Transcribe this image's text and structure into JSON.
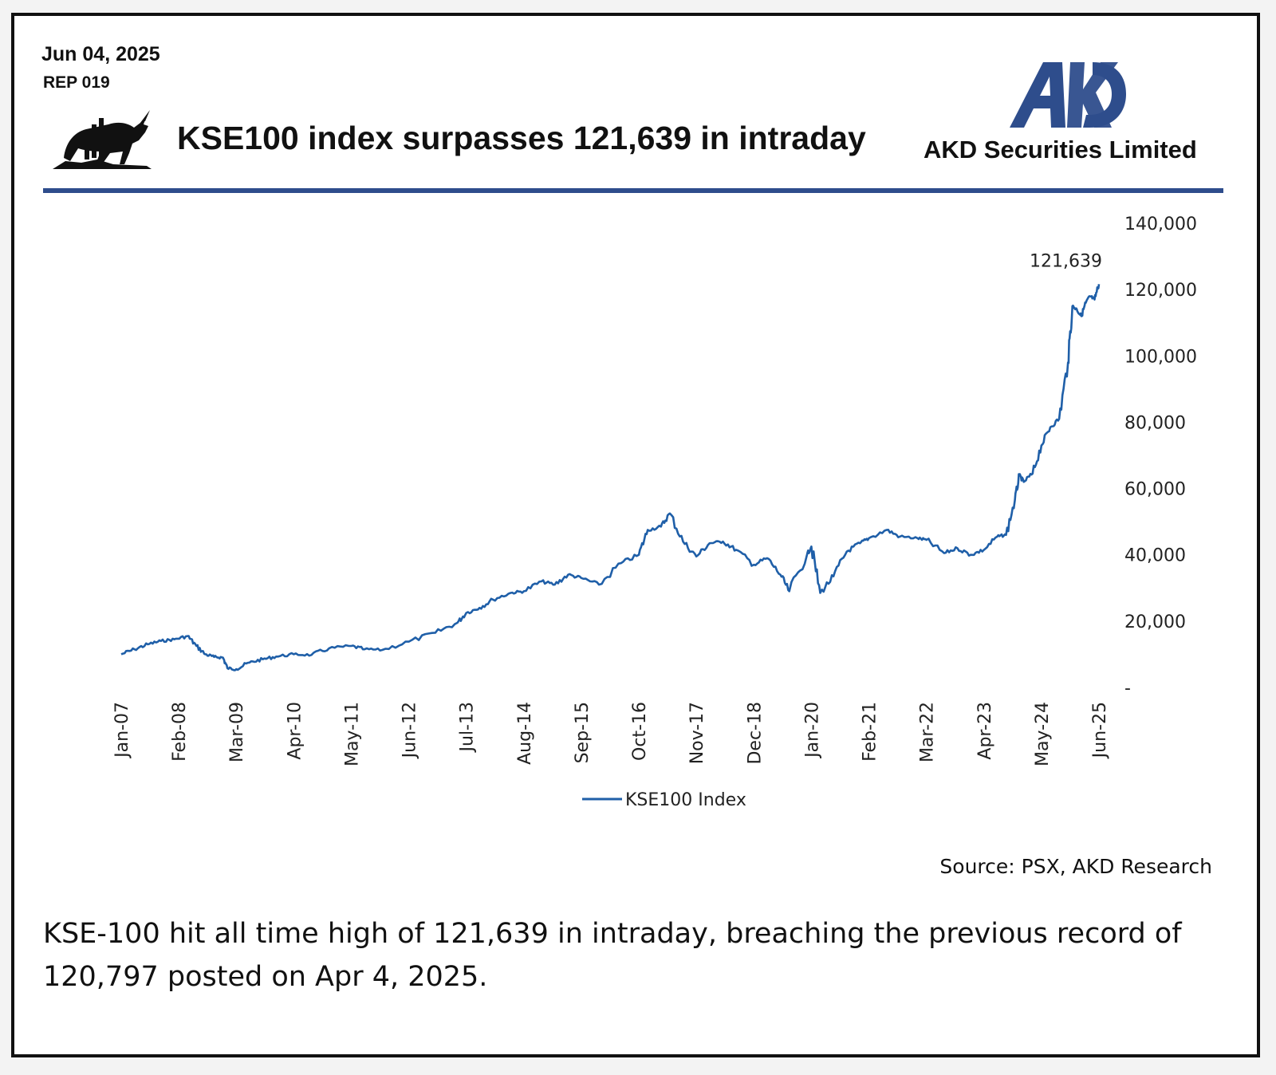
{
  "header": {
    "date": "Jun 04, 2025",
    "report_code": "REP 019",
    "title": "KSE100 index surpasses 121,639 in intraday",
    "company": "AKD Securities Limited",
    "logo_text": "AKD",
    "brand_color": "#2e4d8c",
    "bull_icon": "bull-icon"
  },
  "footer": {
    "source": "Source: PSX, AKD Research",
    "note": "KSE-100 hit all time high of 121,639 in intraday, breaching the previous record of 120,797 posted on Apr 4, 2025."
  },
  "chart_data": {
    "type": "line",
    "title": "",
    "xlabel": "",
    "ylabel": "",
    "y_axis_position": "right",
    "ylim": [
      0,
      140000
    ],
    "y_ticks": [
      0,
      20000,
      40000,
      60000,
      80000,
      100000,
      120000,
      140000
    ],
    "y_tick_labels": [
      "-",
      "20,000",
      "40,000",
      "60,000",
      "80,000",
      "100,000",
      "120,000",
      "140,000"
    ],
    "x_tick_labels": [
      "Jan-07",
      "Feb-08",
      "Mar-09",
      "Apr-10",
      "May-11",
      "Jun-12",
      "Jul-13",
      "Aug-14",
      "Sep-15",
      "Oct-16",
      "Nov-17",
      "Dec-18",
      "Jan-20",
      "Feb-21",
      "Mar-22",
      "Apr-23",
      "May-24",
      "Jun-25"
    ],
    "x_tick_dates": [
      "2007-01",
      "2008-02",
      "2009-03",
      "2010-04",
      "2011-05",
      "2012-06",
      "2013-07",
      "2014-08",
      "2015-09",
      "2016-10",
      "2017-11",
      "2018-12",
      "2020-01",
      "2021-02",
      "2022-03",
      "2023-04",
      "2024-05",
      "2025-06"
    ],
    "grid": false,
    "legend": "bottom",
    "annotation": {
      "date": "2025-06",
      "value": 121639,
      "label": "121,639"
    },
    "series": [
      {
        "name": "KSE100 Index",
        "color": "#1f5fa8",
        "points": [
          [
            "2007-01",
            10000
          ],
          [
            "2007-04",
            11500
          ],
          [
            "2007-07",
            13000
          ],
          [
            "2007-10",
            14000
          ],
          [
            "2008-01",
            14500
          ],
          [
            "2008-04",
            15500
          ],
          [
            "2008-06",
            12500
          ],
          [
            "2008-08",
            10000
          ],
          [
            "2008-10",
            9200
          ],
          [
            "2008-12",
            9000
          ],
          [
            "2009-01",
            5800
          ],
          [
            "2009-03",
            5500
          ],
          [
            "2009-06",
            7500
          ],
          [
            "2009-09",
            8500
          ],
          [
            "2009-12",
            9300
          ],
          [
            "2010-04",
            10000
          ],
          [
            "2010-08",
            9800
          ],
          [
            "2010-12",
            11800
          ],
          [
            "2011-05",
            12500
          ],
          [
            "2011-08",
            11500
          ],
          [
            "2011-12",
            11300
          ],
          [
            "2012-06",
            13800
          ],
          [
            "2012-12",
            16500
          ],
          [
            "2013-05",
            19500
          ],
          [
            "2013-07",
            22500
          ],
          [
            "2013-10",
            24000
          ],
          [
            "2014-01",
            26500
          ],
          [
            "2014-05",
            28500
          ],
          [
            "2014-08",
            29000
          ],
          [
            "2014-12",
            32000
          ],
          [
            "2015-03",
            31000
          ],
          [
            "2015-06",
            34000
          ],
          [
            "2015-09",
            33000
          ],
          [
            "2016-01",
            31000
          ],
          [
            "2016-06",
            37500
          ],
          [
            "2016-10",
            40000
          ],
          [
            "2016-12",
            47500
          ],
          [
            "2017-03",
            48500
          ],
          [
            "2017-05",
            52500
          ],
          [
            "2017-08",
            44000
          ],
          [
            "2017-11",
            39500
          ],
          [
            "2018-02",
            43500
          ],
          [
            "2018-05",
            44000
          ],
          [
            "2018-08",
            41500
          ],
          [
            "2018-12",
            37000
          ],
          [
            "2019-03",
            39000
          ],
          [
            "2019-06",
            34000
          ],
          [
            "2019-08",
            29000
          ],
          [
            "2019-12",
            40000
          ],
          [
            "2020-01",
            42500
          ],
          [
            "2020-03",
            28500
          ],
          [
            "2020-06",
            33500
          ],
          [
            "2020-09",
            41000
          ],
          [
            "2020-12",
            43500
          ],
          [
            "2021-02",
            45000
          ],
          [
            "2021-06",
            47500
          ],
          [
            "2021-09",
            45500
          ],
          [
            "2022-01",
            45000
          ],
          [
            "2022-03",
            44500
          ],
          [
            "2022-07",
            40500
          ],
          [
            "2022-10",
            42000
          ],
          [
            "2023-01",
            40000
          ],
          [
            "2023-04",
            41500
          ],
          [
            "2023-07",
            45500
          ],
          [
            "2023-09",
            46000
          ],
          [
            "2023-11",
            56500
          ],
          [
            "2023-12",
            64000
          ],
          [
            "2024-01",
            62000
          ],
          [
            "2024-03",
            64500
          ],
          [
            "2024-05",
            73000
          ],
          [
            "2024-07",
            78500
          ],
          [
            "2024-09",
            81000
          ],
          [
            "2024-11",
            98000
          ],
          [
            "2024-12",
            115000
          ],
          [
            "2025-01",
            114000
          ],
          [
            "2025-02",
            112000
          ],
          [
            "2025-03",
            116000
          ],
          [
            "2025-04",
            118000
          ],
          [
            "2025-05",
            117000
          ],
          [
            "2025-06",
            121639
          ]
        ]
      }
    ]
  }
}
